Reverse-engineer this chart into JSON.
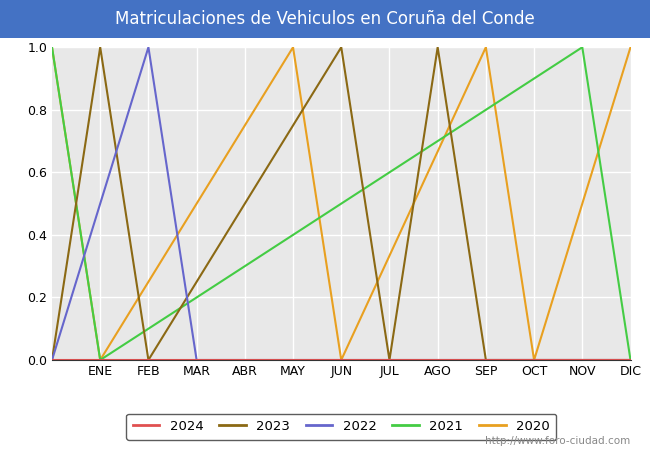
{
  "title": "Matriculaciones de Vehiculos en Coruña del Conde",
  "title_bg_color": "#4472c4",
  "title_text_color": "white",
  "plot_bg_color": "#e8e8e8",
  "figure_bg_color": "#ffffff",
  "grid_color": "white",
  "months": [
    "ENE",
    "FEB",
    "MAR",
    "ABR",
    "MAY",
    "JUN",
    "JUL",
    "AGO",
    "SEP",
    "OCT",
    "NOV",
    "DIC"
  ],
  "ylim": [
    0.0,
    1.0
  ],
  "yticks": [
    0.0,
    0.2,
    0.4,
    0.6,
    0.8,
    1.0
  ],
  "watermark": "http://www.foro-ciudad.com",
  "legend_order": [
    "2024",
    "2023",
    "2022",
    "2021",
    "2020"
  ],
  "series": {
    "2024": {
      "color": "#e05050",
      "x": [
        0,
        12
      ],
      "y": [
        0,
        0
      ]
    },
    "2023": {
      "color": "#8B6914",
      "x": [
        0.0,
        1.0,
        2.0,
        6.0,
        7.0,
        8.0,
        9.0,
        12.0
      ],
      "y": [
        0.0,
        1.0,
        0.0,
        1.0,
        0.0,
        1.0,
        0.0,
        0.0
      ]
    },
    "2022": {
      "color": "#6666cc",
      "x": [
        0.0,
        2.0,
        3.0,
        12.0
      ],
      "y": [
        0.0,
        1.0,
        0.0,
        0.0
      ]
    },
    "2021": {
      "color": "#44cc44",
      "x": [
        0.0,
        1.0,
        11.0,
        12.0
      ],
      "y": [
        1.0,
        0.0,
        1.0,
        0.0
      ]
    },
    "2020": {
      "color": "#e8a020",
      "x": [
        0.0,
        1.0,
        5.0,
        6.0,
        9.0,
        10.0,
        12.0
      ],
      "y": [
        1.0,
        0.0,
        1.0,
        0.0,
        1.0,
        0.0,
        1.0
      ]
    }
  }
}
